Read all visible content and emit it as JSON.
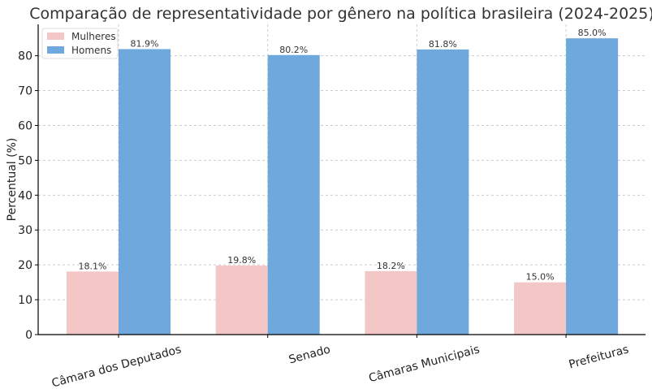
{
  "chart_data": {
    "type": "bar",
    "title": "Comparação de representatividade por gênero na política brasileira (2024-2025)",
    "xlabel": "",
    "ylabel": "Percentual (%)",
    "ylim": [
      0,
      89
    ],
    "yticks": [
      0,
      10,
      20,
      30,
      40,
      50,
      60,
      70,
      80
    ],
    "grid": true,
    "legend_position": "top-left",
    "categories": [
      "Câmara dos Deputados",
      "Senado",
      "Câmaras Municipais",
      "Prefeituras"
    ],
    "series": [
      {
        "name": "Mulheres",
        "color": "#f4c7c7",
        "values": [
          18.1,
          19.8,
          18.2,
          15.0
        ],
        "labels": [
          "18.1%",
          "19.8%",
          "18.2%",
          "15.0%"
        ]
      },
      {
        "name": "Homens",
        "color": "#6fa8dc",
        "values": [
          81.9,
          80.2,
          81.8,
          85.0
        ],
        "labels": [
          "81.9%",
          "80.2%",
          "81.8%",
          "85.0%"
        ]
      }
    ]
  }
}
